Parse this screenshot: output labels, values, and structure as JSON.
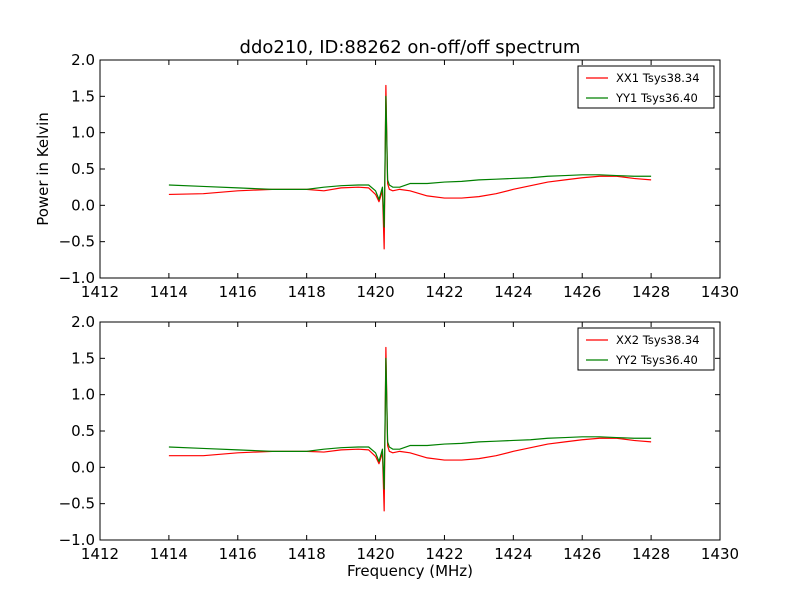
{
  "chart_data": [
    {
      "type": "line",
      "title": "ddo210, ID:88262 on-off/off spectrum",
      "xlabel": "",
      "ylabel": "Power in Kelvin",
      "xlim": [
        1412,
        1430
      ],
      "ylim": [
        -1.0,
        2.0
      ],
      "xticks": [
        "1412",
        "1414",
        "1416",
        "1418",
        "1420",
        "1422",
        "1424",
        "1426",
        "1428",
        "1430"
      ],
      "yticks": [
        "−1.0",
        "−0.5",
        "0.0",
        "0.5",
        "1.0",
        "1.5",
        "2.0"
      ],
      "grid": false,
      "legend_position": "top-right",
      "x": [
        1414.0,
        1415.0,
        1416.0,
        1417.0,
        1418.0,
        1418.5,
        1419.0,
        1419.5,
        1419.8,
        1420.0,
        1420.1,
        1420.2,
        1420.25,
        1420.3,
        1420.35,
        1420.4,
        1420.5,
        1420.7,
        1421.0,
        1421.5,
        1422.0,
        1422.5,
        1423.0,
        1423.5,
        1424.0,
        1424.5,
        1425.0,
        1425.5,
        1426.0,
        1426.5,
        1427.0,
        1427.5,
        1428.0
      ],
      "series": [
        {
          "name": "XX1 Tsys38.34",
          "color": "#ff0000",
          "values": [
            0.15,
            0.16,
            0.2,
            0.22,
            0.22,
            0.2,
            0.24,
            0.25,
            0.24,
            0.15,
            0.05,
            0.2,
            -0.6,
            1.65,
            0.3,
            0.22,
            0.2,
            0.22,
            0.2,
            0.13,
            0.1,
            0.1,
            0.12,
            0.16,
            0.22,
            0.27,
            0.32,
            0.35,
            0.38,
            0.4,
            0.4,
            0.37,
            0.35
          ]
        },
        {
          "name": "YY1 Tsys36.40",
          "color": "#008000",
          "values": [
            0.28,
            0.26,
            0.24,
            0.22,
            0.22,
            0.25,
            0.27,
            0.28,
            0.28,
            0.2,
            0.08,
            0.25,
            -0.3,
            1.5,
            0.35,
            0.28,
            0.25,
            0.25,
            0.3,
            0.3,
            0.32,
            0.33,
            0.35,
            0.36,
            0.37,
            0.38,
            0.4,
            0.41,
            0.42,
            0.42,
            0.41,
            0.4,
            0.4
          ]
        }
      ]
    },
    {
      "type": "line",
      "title": "",
      "xlabel": "Frequency (MHz)",
      "ylabel": "",
      "xlim": [
        1412,
        1430
      ],
      "ylim": [
        -1.0,
        2.0
      ],
      "xticks": [
        "1412",
        "1414",
        "1416",
        "1418",
        "1420",
        "1422",
        "1424",
        "1426",
        "1428",
        "1430"
      ],
      "yticks": [
        "−1.0",
        "−0.5",
        "0.0",
        "0.5",
        "1.0",
        "1.5",
        "2.0"
      ],
      "grid": false,
      "legend_position": "top-right",
      "x": [
        1414.0,
        1415.0,
        1416.0,
        1417.0,
        1418.0,
        1418.5,
        1419.0,
        1419.5,
        1419.8,
        1420.0,
        1420.1,
        1420.2,
        1420.25,
        1420.3,
        1420.35,
        1420.4,
        1420.5,
        1420.7,
        1421.0,
        1421.5,
        1422.0,
        1422.5,
        1423.0,
        1423.5,
        1424.0,
        1424.5,
        1425.0,
        1425.5,
        1426.0,
        1426.5,
        1427.0,
        1427.5,
        1428.0
      ],
      "series": [
        {
          "name": "XX2 Tsys38.34",
          "color": "#ff0000",
          "values": [
            0.16,
            0.16,
            0.2,
            0.22,
            0.22,
            0.21,
            0.24,
            0.25,
            0.24,
            0.15,
            0.05,
            0.2,
            -0.6,
            1.65,
            0.3,
            0.22,
            0.2,
            0.22,
            0.2,
            0.13,
            0.1,
            0.1,
            0.12,
            0.16,
            0.22,
            0.27,
            0.32,
            0.35,
            0.38,
            0.4,
            0.4,
            0.37,
            0.35
          ]
        },
        {
          "name": "YY2 Tsys36.40",
          "color": "#008000",
          "values": [
            0.28,
            0.26,
            0.24,
            0.22,
            0.22,
            0.25,
            0.27,
            0.28,
            0.28,
            0.2,
            0.08,
            0.25,
            -0.3,
            1.5,
            0.35,
            0.28,
            0.25,
            0.25,
            0.3,
            0.3,
            0.32,
            0.33,
            0.35,
            0.36,
            0.37,
            0.38,
            0.4,
            0.41,
            0.42,
            0.42,
            0.41,
            0.4,
            0.4
          ]
        }
      ]
    }
  ]
}
